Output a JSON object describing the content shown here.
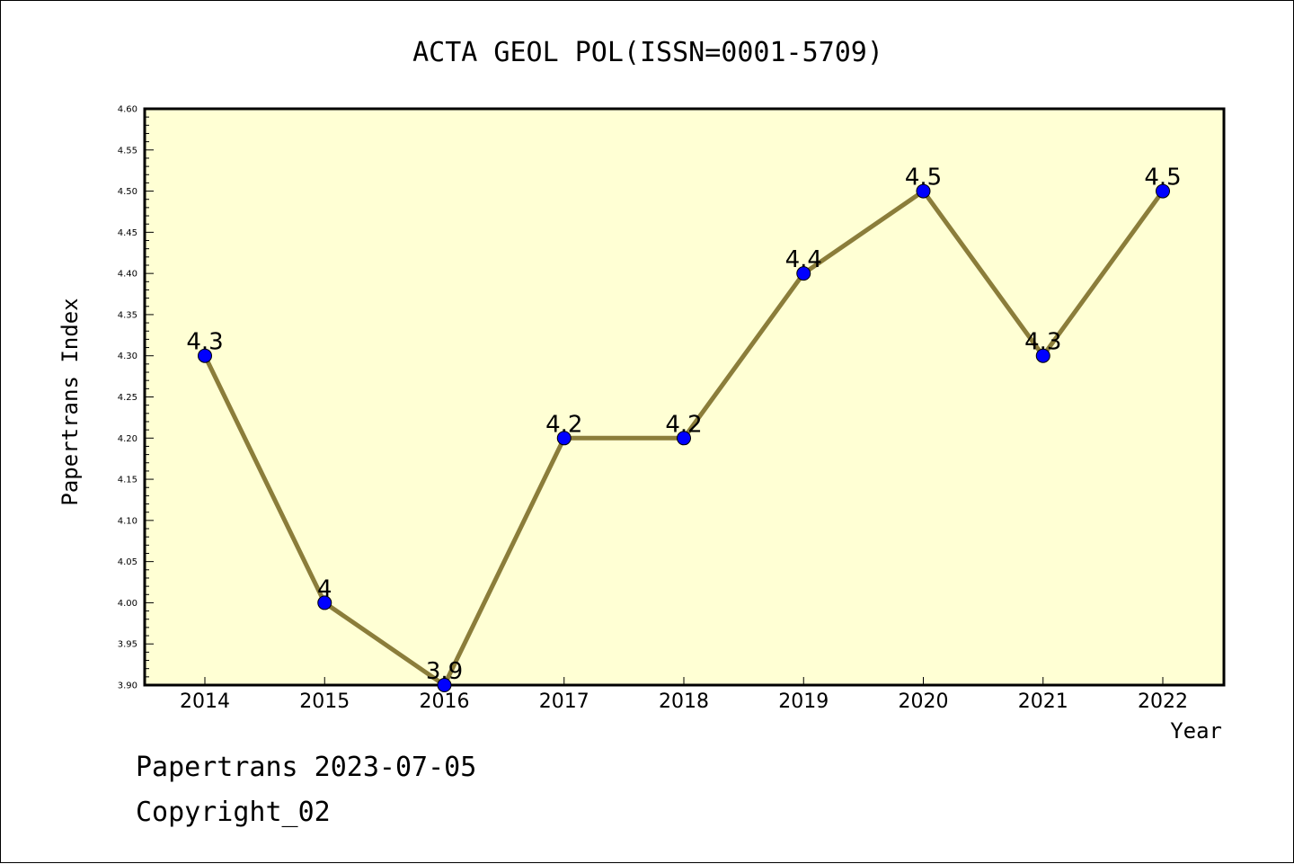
{
  "chart_data": {
    "type": "line",
    "title": "ACTA GEOL POL(ISSN=0001-5709)",
    "xlabel": "Year",
    "ylabel": "Papertrans Index",
    "categories": [
      "2014",
      "2015",
      "2016",
      "2017",
      "2018",
      "2019",
      "2020",
      "2021",
      "2022"
    ],
    "series": [
      {
        "values": [
          4.3,
          4.0,
          3.9,
          4.2,
          4.2,
          4.4,
          4.5,
          4.3,
          4.5
        ],
        "labels": [
          "4.3",
          "4",
          "3.9",
          "4.2",
          "4.2",
          "4.4",
          "4.5",
          "4.3",
          "4.5"
        ]
      }
    ],
    "ylim": [
      3.9,
      4.6
    ],
    "yticks": [
      "3.90",
      "3.95",
      "4.00",
      "4.05",
      "4.10",
      "4.15",
      "4.20",
      "4.25",
      "4.30",
      "4.35",
      "4.40",
      "4.45",
      "4.50",
      "4.55",
      "4.60"
    ],
    "grid": false,
    "colors": {
      "plot_background": "#ffffd4",
      "line": "#8b7d3a",
      "marker": "#0000ff"
    }
  },
  "footer": {
    "line1": "Papertrans 2023-07-05",
    "line2": "Copyright_02"
  }
}
